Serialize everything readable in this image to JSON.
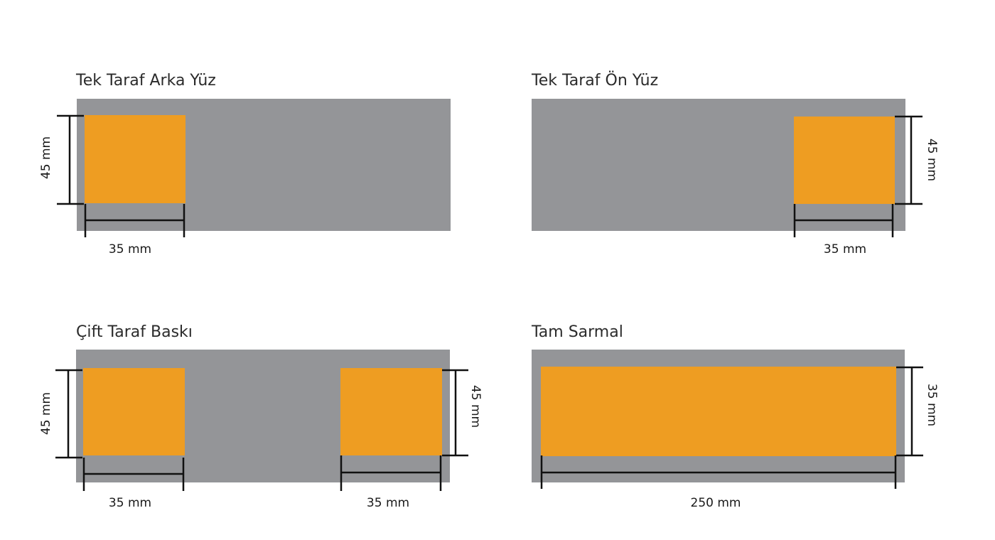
{
  "colors": {
    "panel": "#949598",
    "print_area": "#EE9D22",
    "dimension_line": "#111111"
  },
  "panels": [
    {
      "title": "Tek Taraf Arka Yüz",
      "height_label": "45 mm",
      "width_label": "35 mm"
    },
    {
      "title": "Tek Taraf Ön Yüz",
      "height_label": "45 mm",
      "width_label": "35 mm"
    },
    {
      "title": "Çift Taraf Baskı",
      "left_height_label": "45 mm",
      "left_width_label": "35 mm",
      "right_height_label": "45 mm",
      "right_width_label": "35 mm"
    },
    {
      "title": "Tam Sarmal",
      "height_label": "35 mm",
      "width_label": "250 mm"
    }
  ]
}
